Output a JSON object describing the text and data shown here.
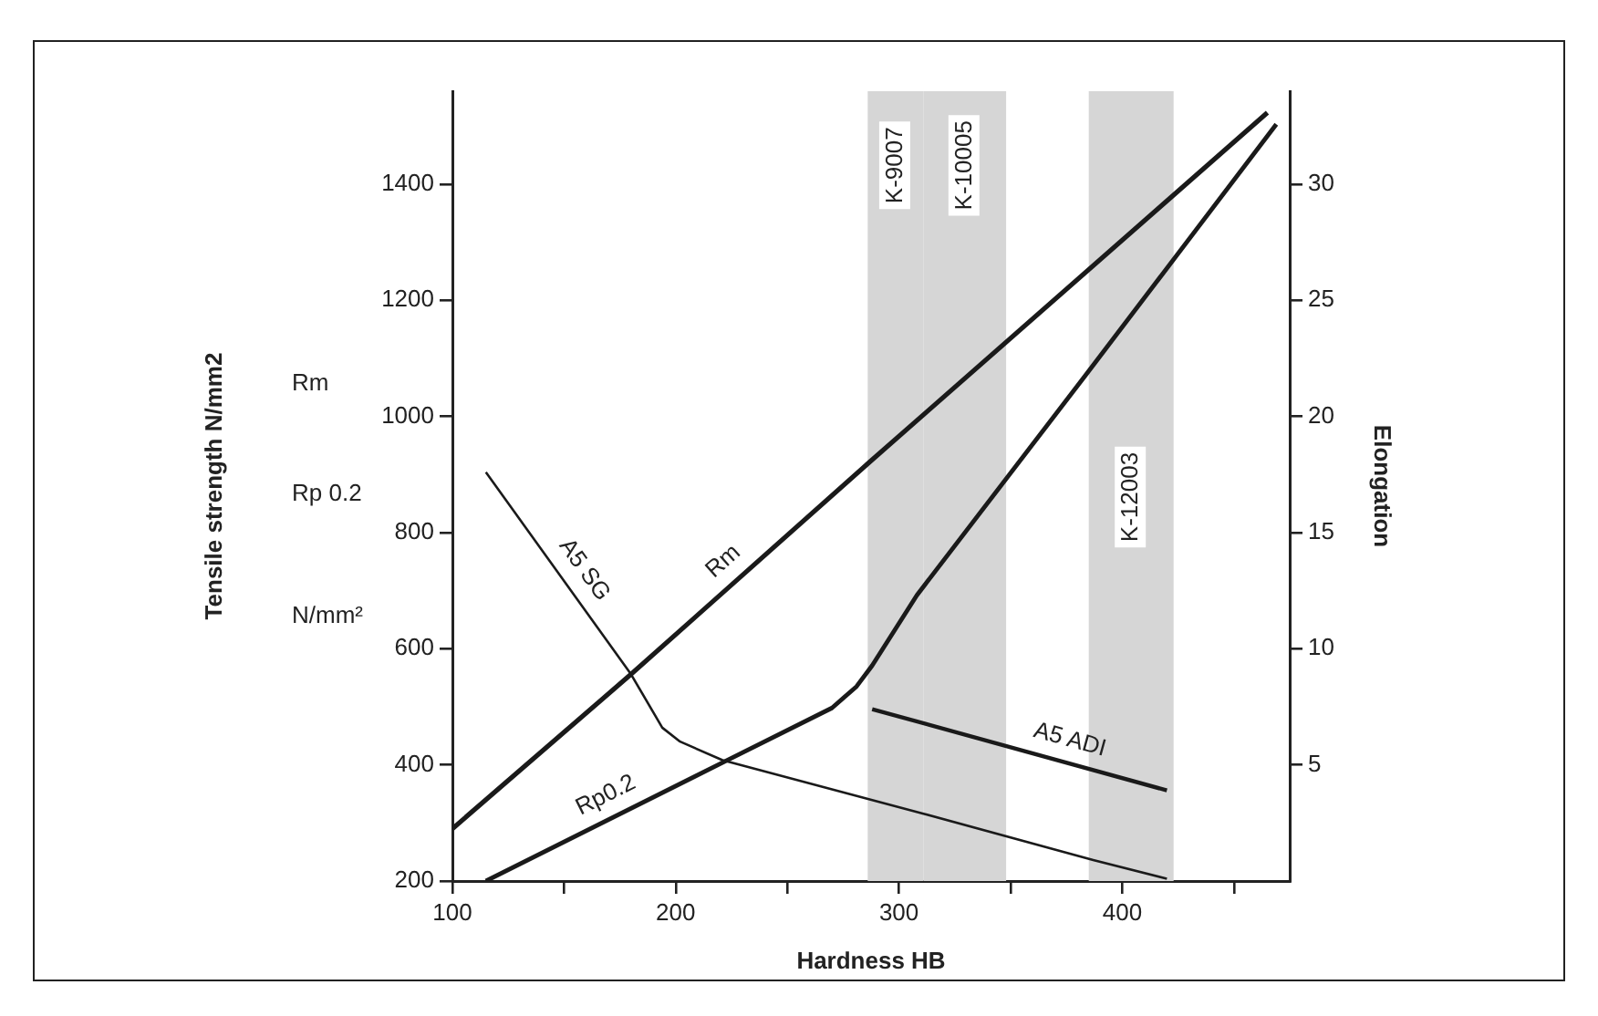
{
  "chart_data": {
    "type": "line",
    "xlabel": "Hardness HB",
    "y2label": "Elongation",
    "xlim": [
      100,
      475
    ],
    "xticks": [
      100,
      {
        "value": 150,
        "label": null
      },
      200,
      {
        "value": 250,
        "label": null
      },
      300,
      {
        "value": 350,
        "label": null
      },
      400,
      {
        "value": 450,
        "label": null
      }
    ],
    "ylim": [
      200,
      1560
    ],
    "yticks": [
      200,
      400,
      600,
      800,
      1000,
      1200,
      1400
    ],
    "y2lim": [
      0,
      34
    ],
    "y2ticks": [
      5,
      10,
      15,
      20,
      25,
      30
    ],
    "series": [
      {
        "name": "Rm",
        "color": "#1a1a1a",
        "x": [
          100,
          180,
          287,
          465
        ],
        "values": [
          290,
          556,
          922,
          1523
        ]
      },
      {
        "name": "Rp0.2",
        "color": "#1a1a1a",
        "x": [
          115,
          221,
          270,
          281,
          288,
          308,
          383,
          469
        ],
        "values": [
          200,
          404,
          498,
          535,
          571,
          692,
          1068,
          1503
        ]
      },
      {
        "name": "A5 SG",
        "color": "#1a1a1a",
        "axis": "y2",
        "x": [
          115,
          180,
          194,
          202,
          221,
          311,
          387,
          420
        ],
        "values": [
          17.6,
          8.9,
          6.6,
          6.0,
          5.2,
          2.9,
          0.9,
          0.1
        ]
      },
      {
        "name": "A5 ADI",
        "color": "#1a1a1a",
        "axis": "y2",
        "x": [
          288,
          420
        ],
        "values": [
          7.4,
          3.9
        ]
      }
    ],
    "bands": [
      {
        "axis": "x",
        "from": 286,
        "to": 311,
        "label": "K-9007",
        "color": "#d6d6d6"
      },
      {
        "axis": "x",
        "from": 311,
        "to": 348,
        "label": "K-10005",
        "color": "#d6d6d6"
      },
      {
        "axis": "x",
        "from": 385,
        "to": 423,
        "label": "K-12003",
        "color": "#d6d6d6"
      }
    ],
    "annotations": [
      "Tensile strength N/mm2",
      "Rm",
      "Rp 0.2",
      "N/mm²"
    ],
    "grid": false,
    "legend": false,
    "marker": "none",
    "line_style": "solid"
  }
}
